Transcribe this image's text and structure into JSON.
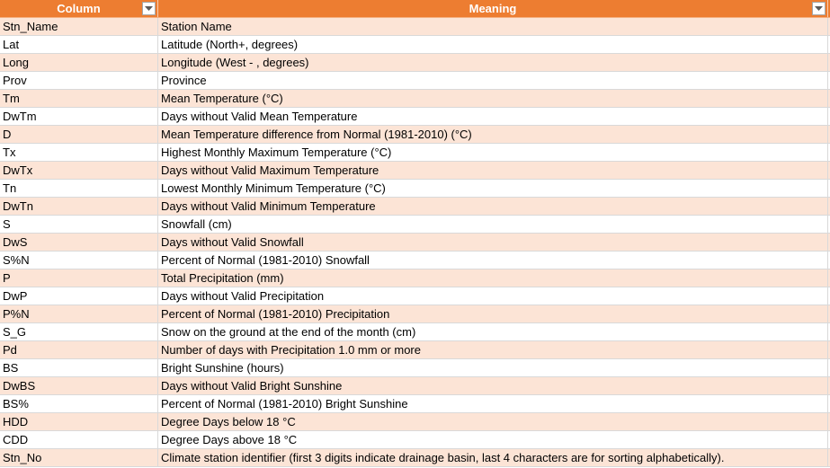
{
  "table": {
    "header": {
      "column_label": "Column",
      "meaning_label": "Meaning"
    },
    "colors": {
      "header_bg": "#ed7d31",
      "band_bg": "#fce4d6",
      "plain_bg": "#ffffff"
    },
    "rows": [
      {
        "column": "Stn_Name",
        "meaning": "Station Name"
      },
      {
        "column": "Lat",
        "meaning": "Latitude (North+, degrees)"
      },
      {
        "column": "Long",
        "meaning": "Longitude (West - , degrees)"
      },
      {
        "column": "Prov",
        "meaning": "Province"
      },
      {
        "column": "Tm",
        "meaning": "Mean Temperature (°C)"
      },
      {
        "column": "DwTm",
        "meaning": "Days without Valid Mean Temperature"
      },
      {
        "column": "D",
        "meaning": "Mean Temperature difference from Normal (1981-2010) (°C)"
      },
      {
        "column": "Tx",
        "meaning": "Highest Monthly Maximum Temperature (°C)"
      },
      {
        "column": "DwTx",
        "meaning": "Days without Valid Maximum Temperature"
      },
      {
        "column": "Tn",
        "meaning": "Lowest Monthly Minimum Temperature (°C)"
      },
      {
        "column": "DwTn",
        "meaning": "Days without Valid Minimum Temperature"
      },
      {
        "column": "S",
        "meaning": "Snowfall (cm)"
      },
      {
        "column": "DwS",
        "meaning": "Days without Valid Snowfall"
      },
      {
        "column": "S%N",
        "meaning": "Percent of Normal (1981-2010) Snowfall"
      },
      {
        "column": "P",
        "meaning": "Total Precipitation (mm)"
      },
      {
        "column": "DwP",
        "meaning": "Days without Valid Precipitation"
      },
      {
        "column": "P%N",
        "meaning": "Percent of Normal (1981-2010) Precipitation"
      },
      {
        "column": "S_G",
        "meaning": "Snow on the ground at the end of the month (cm)"
      },
      {
        "column": "Pd",
        "meaning": "Number of days with Precipitation 1.0 mm or more"
      },
      {
        "column": "BS",
        "meaning": "Bright Sunshine (hours)"
      },
      {
        "column": "DwBS",
        "meaning": "Days without Valid Bright Sunshine"
      },
      {
        "column": "BS%",
        "meaning": "Percent of Normal (1981-2010) Bright Sunshine"
      },
      {
        "column": "HDD",
        "meaning": "Degree Days below 18 °C"
      },
      {
        "column": "CDD",
        "meaning": "Degree Days above 18 °C"
      },
      {
        "column": "Stn_No",
        "meaning": "Climate station identifier (first 3 digits indicate drainage basin, last 4 characters are for sorting alphabetically)."
      }
    ]
  }
}
